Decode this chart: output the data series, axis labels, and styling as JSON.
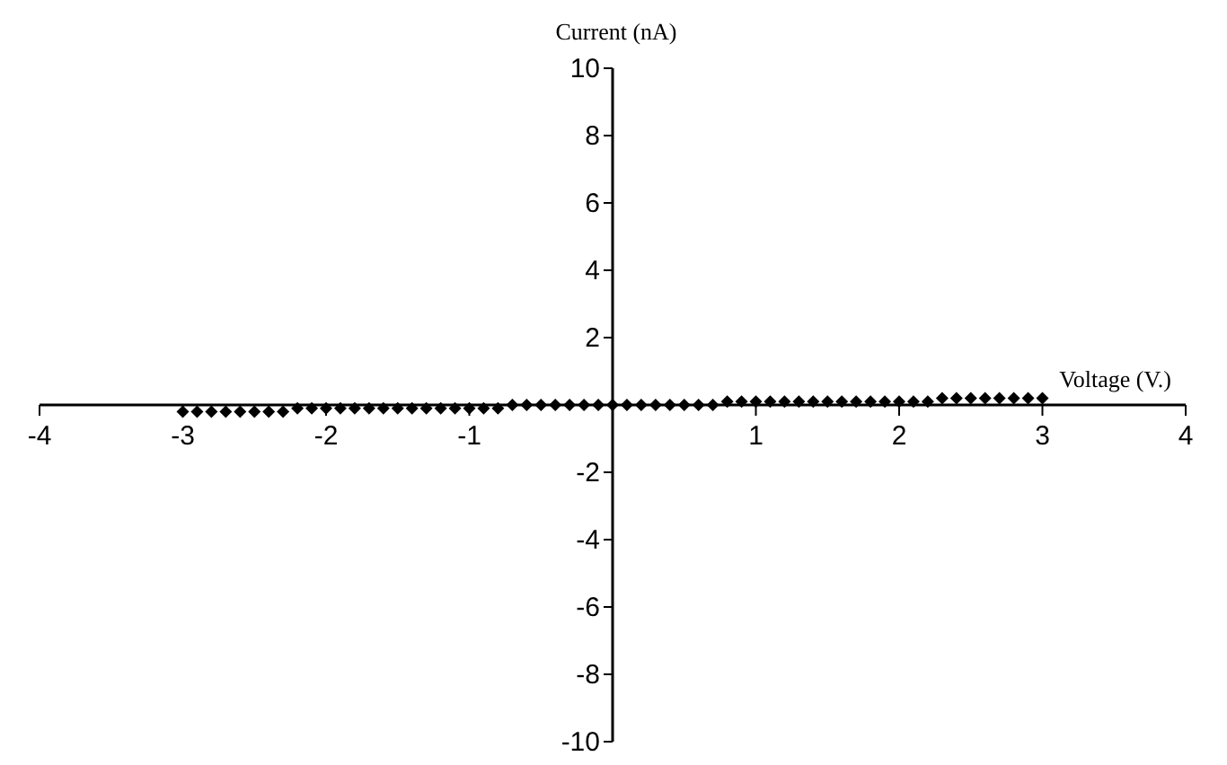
{
  "chart_data": {
    "type": "scatter",
    "xlabel": "Voltage (V.)",
    "ylabel": "Current (nA)",
    "xlim": [
      -4,
      4
    ],
    "xticks": [
      -4,
      -3,
      -2,
      -1,
      1,
      2,
      3,
      4
    ],
    "ylim": [
      -10,
      10
    ],
    "yticks": [
      -10,
      -8,
      -6,
      -4,
      -2,
      2,
      4,
      6,
      8,
      10
    ],
    "marker": "diamond",
    "x": [
      -3,
      -2.9,
      -2.8,
      -2.7,
      -2.6,
      -2.5,
      -2.4,
      -2.3,
      -2.2,
      -2.1,
      -2,
      -1.9,
      -1.8,
      -1.7,
      -1.6,
      -1.5,
      -1.4,
      -1.3,
      -1.2,
      -1.1,
      -1,
      -0.9,
      -0.8,
      -0.7,
      -0.6,
      -0.5,
      -0.4,
      -0.3,
      -0.2,
      -0.1,
      0,
      0.1,
      0.2,
      0.3,
      0.4,
      0.5,
      0.6,
      0.7,
      0.8,
      0.9,
      1,
      1.1,
      1.2,
      1.3,
      1.4,
      1.5,
      1.6,
      1.7,
      1.8,
      1.9,
      2,
      2.1,
      2.2,
      2.3,
      2.4,
      2.5,
      2.6,
      2.7,
      2.8,
      2.9,
      3
    ],
    "series": [
      {
        "color": "#000000",
        "values": [
          -0.2,
          -0.2,
          -0.2,
          -0.2,
          -0.2,
          -0.2,
          -0.2,
          -0.2,
          -0.1,
          -0.1,
          -0.1,
          -0.1,
          -0.1,
          -0.1,
          -0.1,
          -0.1,
          -0.1,
          -0.1,
          -0.1,
          -0.1,
          -0.1,
          -0.1,
          -0.1,
          0,
          0,
          0,
          0,
          0,
          0,
          0,
          0,
          0,
          0,
          0,
          0,
          0,
          0,
          0,
          0.1,
          0.1,
          0.1,
          0.1,
          0.1,
          0.1,
          0.1,
          0.1,
          0.1,
          0.1,
          0.1,
          0.1,
          0.1,
          0.1,
          0.1,
          0.2,
          0.2,
          0.2,
          0.2,
          0.2,
          0.2,
          0.2,
          0.2
        ]
      }
    ]
  }
}
